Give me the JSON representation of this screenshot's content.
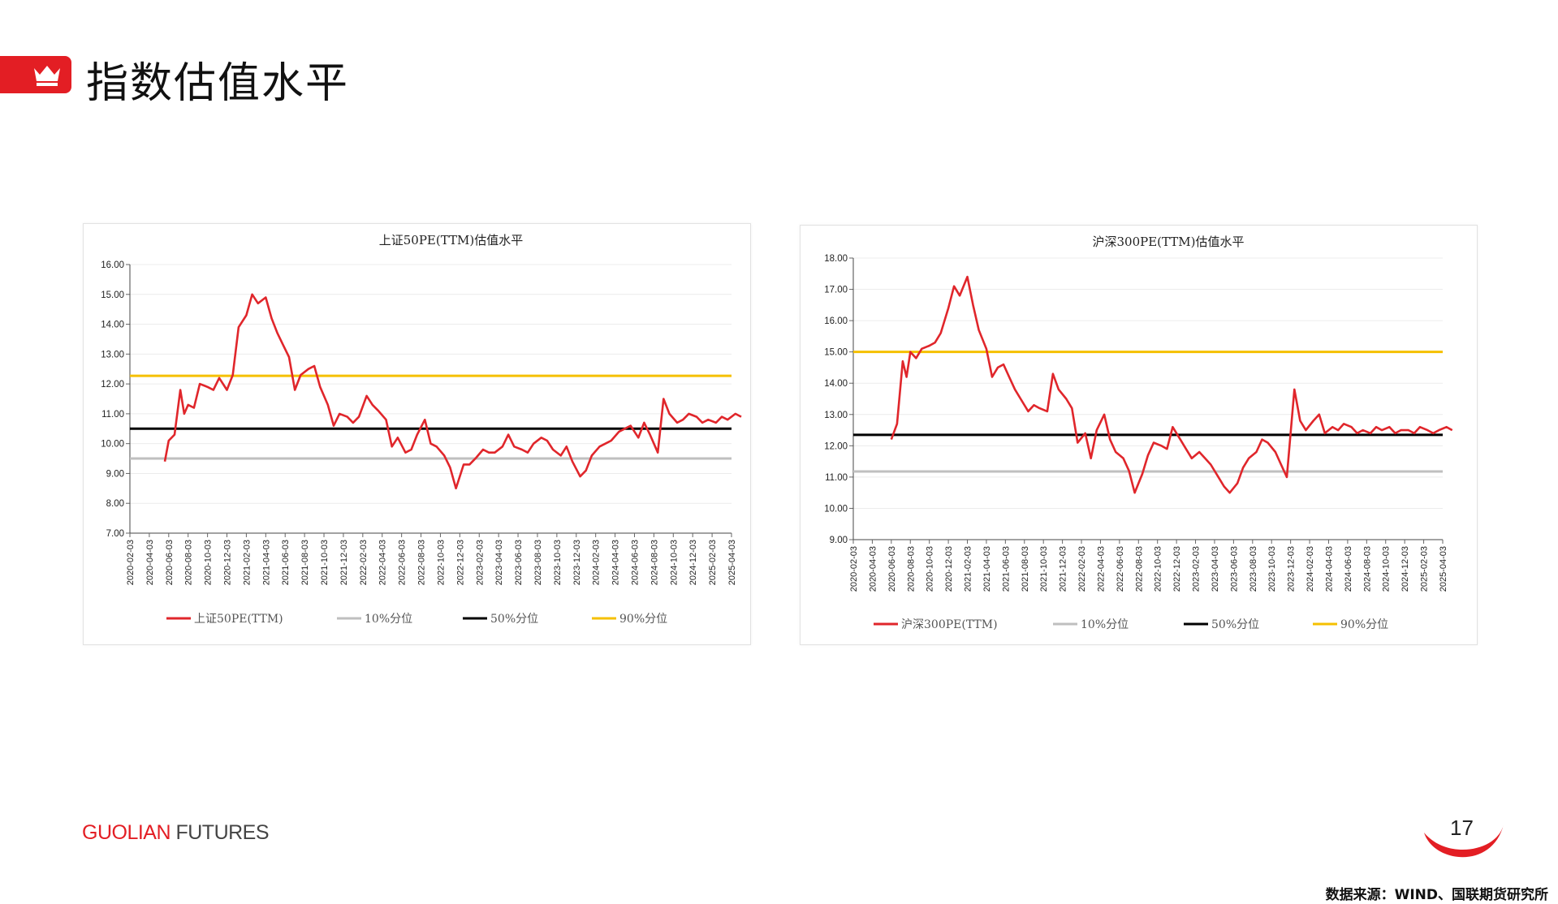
{
  "page": {
    "title": "指数估值水平",
    "brand_red": "GUOLIAN",
    "brand_gray": " FUTURES",
    "page_number": "17",
    "source": "数据来源：WIND、国联期货研究所",
    "accent_color": "#e31e24",
    "icon": "crown-icon"
  },
  "chart_data": [
    {
      "type": "line",
      "title": "上证50PE(TTM)估值水平",
      "ylim": [
        7,
        16
      ],
      "yticks": [
        "7.00",
        "8.00",
        "9.00",
        "10.00",
        "11.00",
        "12.00",
        "13.00",
        "14.00",
        "15.00",
        "16.00"
      ],
      "categories": [
        "2020-02-03",
        "2020-04-03",
        "2020-06-03",
        "2020-08-03",
        "2020-10-03",
        "2020-12-03",
        "2021-02-03",
        "2021-04-03",
        "2021-06-03",
        "2021-08-03",
        "2021-10-03",
        "2021-12-03",
        "2022-02-03",
        "2022-04-03",
        "2022-06-03",
        "2022-08-03",
        "2022-10-03",
        "2022-12-03",
        "2023-02-03",
        "2023-04-03",
        "2023-06-03",
        "2023-08-03",
        "2023-10-03",
        "2023-12-03",
        "2024-02-03",
        "2024-04-03",
        "2024-06-03",
        "2024-08-03",
        "2024-10-03",
        "2024-12-03",
        "2025-02-03",
        "2025-04-03"
      ],
      "grid": true,
      "legend_position": "bottom",
      "series": [
        {
          "name": "上证50PE(TTM)",
          "color": "#e0262b",
          "kind": "pe",
          "x": [
            1.8,
            2.0,
            2.3,
            2.6,
            2.8,
            3.0,
            3.3,
            3.6,
            4.0,
            4.3,
            4.6,
            5.0,
            5.3,
            5.6,
            6.0,
            6.3,
            6.6,
            7.0,
            7.3,
            7.6,
            7.9,
            8.2,
            8.5,
            8.8,
            9.2,
            9.5,
            9.8,
            10.2,
            10.5,
            10.8,
            11.2,
            11.5,
            11.8,
            12.2,
            12.5,
            12.8,
            13.2,
            13.5,
            13.8,
            14.2,
            14.5,
            14.8,
            15.2,
            15.5,
            15.8,
            16.2,
            16.5,
            16.8,
            17.2,
            17.5,
            17.8,
            18.2,
            18.5,
            18.8,
            19.2,
            19.5,
            19.8,
            20.2,
            20.5,
            20.8,
            21.2,
            21.5,
            21.8,
            22.2,
            22.5,
            22.8,
            23.2,
            23.5,
            23.8,
            24.2,
            24.5,
            24.8,
            25.2,
            25.5,
            25.8,
            26.2,
            26.5,
            26.8,
            27.2,
            27.5,
            27.8,
            28.2,
            28.5,
            28.8,
            29.2,
            29.5,
            29.8,
            30.2,
            30.5,
            30.8,
            31.2,
            31.5
          ],
          "y": [
            9.4,
            10.1,
            10.3,
            11.8,
            11.0,
            11.3,
            11.2,
            12.0,
            11.9,
            11.8,
            12.2,
            11.8,
            12.3,
            13.9,
            14.3,
            15.0,
            14.7,
            14.9,
            14.2,
            13.7,
            13.3,
            12.9,
            11.8,
            12.3,
            12.5,
            12.6,
            11.9,
            11.3,
            10.6,
            11.0,
            10.9,
            10.7,
            10.9,
            11.6,
            11.3,
            11.1,
            10.8,
            9.9,
            10.2,
            9.7,
            9.8,
            10.3,
            10.8,
            10.0,
            9.9,
            9.6,
            9.2,
            8.5,
            9.3,
            9.3,
            9.5,
            9.8,
            9.7,
            9.7,
            9.9,
            10.3,
            9.9,
            9.8,
            9.7,
            10.0,
            10.2,
            10.1,
            9.8,
            9.6,
            9.9,
            9.4,
            8.9,
            9.1,
            9.6,
            9.9,
            10.0,
            10.1,
            10.4,
            10.5,
            10.6,
            10.2,
            10.7,
            10.3,
            9.7,
            11.5,
            11.0,
            10.7,
            10.8,
            11.0,
            10.9,
            10.7,
            10.8,
            10.7,
            10.9,
            10.8,
            11.0,
            10.9
          ]
        },
        {
          "name": "10%分位",
          "color": "#bfbfbf",
          "kind": "flat",
          "value": 9.5
        },
        {
          "name": "50%分位",
          "color": "#000000",
          "kind": "flat",
          "value": 10.5
        },
        {
          "name": "90%分位",
          "color": "#f5c000",
          "kind": "flat",
          "value": 12.27
        }
      ]
    },
    {
      "type": "line",
      "title": "沪深300PE(TTM)估值水平",
      "ylim": [
        9,
        18
      ],
      "yticks": [
        "9.00",
        "10.00",
        "11.00",
        "12.00",
        "13.00",
        "14.00",
        "15.00",
        "16.00",
        "17.00",
        "18.00"
      ],
      "categories": [
        "2020-02-03",
        "2020-04-03",
        "2020-06-03",
        "2020-08-03",
        "2020-10-03",
        "2020-12-03",
        "2021-02-03",
        "2021-04-03",
        "2021-06-03",
        "2021-08-03",
        "2021-10-03",
        "2021-12-03",
        "2022-02-03",
        "2022-04-03",
        "2022-06-03",
        "2022-08-03",
        "2022-10-03",
        "2022-12-03",
        "2023-02-03",
        "2023-04-03",
        "2023-06-03",
        "2023-08-03",
        "2023-10-03",
        "2023-12-03",
        "2024-02-03",
        "2024-04-03",
        "2024-06-03",
        "2024-08-03",
        "2024-10-03",
        "2024-12-03",
        "2025-02-03",
        "2025-04-03"
      ],
      "grid": true,
      "legend_position": "bottom",
      "series": [
        {
          "name": "沪深300PE(TTM)",
          "color": "#e0262b",
          "kind": "pe",
          "x": [
            2.0,
            2.3,
            2.6,
            2.8,
            3.0,
            3.3,
            3.6,
            4.0,
            4.3,
            4.6,
            5.0,
            5.3,
            5.6,
            6.0,
            6.3,
            6.6,
            7.0,
            7.3,
            7.6,
            7.9,
            8.2,
            8.5,
            8.8,
            9.2,
            9.5,
            9.8,
            10.2,
            10.5,
            10.8,
            11.2,
            11.5,
            11.8,
            12.2,
            12.5,
            12.8,
            13.2,
            13.5,
            13.8,
            14.2,
            14.5,
            14.8,
            15.2,
            15.5,
            15.8,
            16.2,
            16.5,
            16.8,
            17.2,
            17.5,
            17.8,
            18.2,
            18.5,
            18.8,
            19.2,
            19.5,
            19.8,
            20.2,
            20.5,
            20.8,
            21.2,
            21.5,
            21.8,
            22.2,
            22.5,
            22.8,
            23.2,
            23.5,
            23.8,
            24.2,
            24.5,
            24.8,
            25.2,
            25.5,
            25.8,
            26.2,
            26.5,
            26.8,
            27.2,
            27.5,
            27.8,
            28.2,
            28.5,
            28.8,
            29.2,
            29.5,
            29.8,
            30.2,
            30.5,
            30.8,
            31.2,
            31.5
          ],
          "y": [
            12.2,
            12.7,
            14.7,
            14.2,
            15.0,
            14.8,
            15.1,
            15.2,
            15.3,
            15.6,
            16.4,
            17.1,
            16.8,
            17.4,
            16.5,
            15.7,
            15.1,
            14.2,
            14.5,
            14.6,
            14.2,
            13.8,
            13.5,
            13.1,
            13.3,
            13.2,
            13.1,
            14.3,
            13.8,
            13.5,
            13.2,
            12.1,
            12.4,
            11.6,
            12.5,
            13.0,
            12.2,
            11.8,
            11.6,
            11.2,
            10.5,
            11.1,
            11.7,
            12.1,
            12.0,
            11.9,
            12.6,
            12.2,
            11.9,
            11.6,
            11.8,
            11.6,
            11.4,
            11.0,
            10.7,
            10.5,
            10.8,
            11.3,
            11.6,
            11.8,
            12.2,
            12.1,
            11.8,
            11.4,
            11.0,
            13.8,
            12.8,
            12.5,
            12.8,
            13.0,
            12.4,
            12.6,
            12.5,
            12.7,
            12.6,
            12.4,
            12.5,
            12.4,
            12.6,
            12.5,
            12.6,
            12.4,
            12.5,
            12.5,
            12.4,
            12.6,
            12.5,
            12.4,
            12.5,
            12.6,
            12.5
          ]
        },
        {
          "name": "10%分位",
          "color": "#bfbfbf",
          "kind": "flat",
          "value": 11.18
        },
        {
          "name": "50%分位",
          "color": "#000000",
          "kind": "flat",
          "value": 12.35
        },
        {
          "name": "90%分位",
          "color": "#f5c000",
          "kind": "flat",
          "value": 15.0
        }
      ]
    }
  ]
}
